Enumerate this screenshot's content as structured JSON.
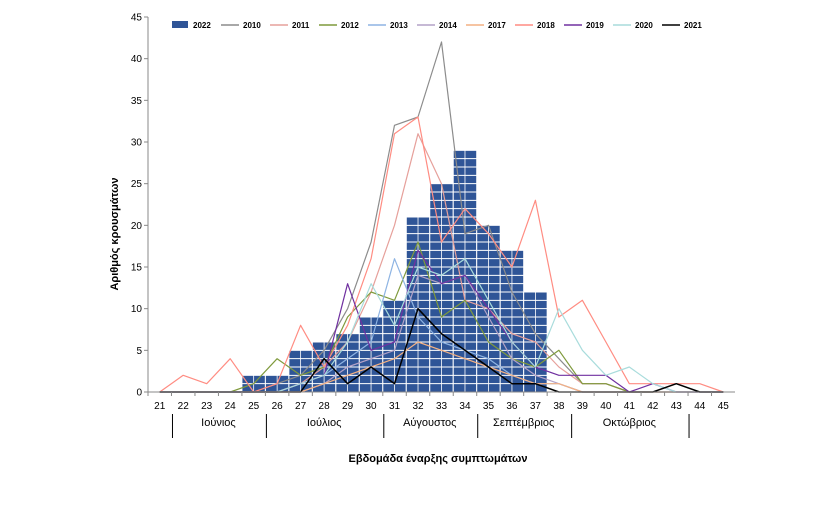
{
  "chart_data": {
    "type": "bar",
    "xlabel": "Εβδομάδα έναρξης συμπτωμάτων",
    "ylabel": "Αριθμός κρουσμάτων",
    "ylim": [
      0,
      45
    ],
    "yticks": [
      0,
      5,
      10,
      15,
      20,
      25,
      30,
      35,
      40,
      45
    ],
    "x": [
      21,
      22,
      23,
      24,
      25,
      26,
      27,
      28,
      29,
      30,
      31,
      32,
      33,
      34,
      35,
      36,
      37,
      38,
      39,
      40,
      41,
      42,
      43,
      44,
      45
    ],
    "months": [
      {
        "label": "Ιούνιος",
        "from": 22,
        "to": 26
      },
      {
        "label": "Ιούλιος",
        "from": 26,
        "to": 31
      },
      {
        "label": "Αύγουστος",
        "from": 31,
        "to": 35
      },
      {
        "label": "Σεπτέμβριος",
        "from": 35,
        "to": 39
      },
      {
        "label": "Οκτώβριος",
        "from": 39,
        "to": 44
      }
    ],
    "legend_position": "top",
    "bar_series": {
      "name": "2022",
      "color": "#2f5597",
      "values": [
        0,
        0,
        0,
        0,
        2,
        2,
        5,
        6,
        7,
        9,
        11,
        21,
        25,
        29,
        20,
        17,
        12,
        0,
        0,
        0,
        0,
        0,
        0,
        0,
        0
      ]
    },
    "line_series": [
      {
        "name": "2010",
        "color": "#8c8c8c",
        "values": [
          0,
          0,
          0,
          0,
          0,
          1,
          2,
          5,
          10,
          18,
          32,
          33,
          42,
          19,
          20,
          12,
          7,
          4,
          1,
          1,
          0,
          0,
          0,
          0,
          0
        ]
      },
      {
        "name": "2011",
        "color": "#e6a09b",
        "values": [
          0,
          0,
          0,
          0,
          0,
          0,
          1,
          3,
          6,
          12,
          20,
          31,
          25,
          11,
          10,
          7,
          6,
          3,
          1,
          1,
          0,
          0,
          0,
          0,
          0
        ]
      },
      {
        "name": "2012",
        "color": "#7f9a3c",
        "values": [
          0,
          0,
          0,
          0,
          1,
          4,
          2,
          3,
          9,
          12,
          11,
          18,
          9,
          11,
          6,
          4,
          3,
          5,
          1,
          1,
          0,
          0,
          0,
          0,
          0
        ]
      },
      {
        "name": "2013",
        "color": "#8eb4e3",
        "values": [
          0,
          0,
          0,
          0,
          0,
          0,
          1,
          2,
          4,
          6,
          16,
          9,
          6,
          5,
          4,
          2,
          1,
          1,
          0,
          0,
          0,
          0,
          0,
          0,
          0
        ]
      },
      {
        "name": "2014",
        "color": "#b3a2c7",
        "values": [
          0,
          0,
          0,
          0,
          0,
          0,
          0,
          1,
          3,
          4,
          5,
          14,
          13,
          14,
          9,
          4,
          2,
          1,
          0,
          0,
          0,
          0,
          0,
          0,
          0
        ]
      },
      {
        "name": "2017",
        "color": "#f4b183",
        "values": [
          0,
          0,
          0,
          0,
          0,
          0,
          0,
          1,
          2,
          3,
          4,
          6,
          5,
          4,
          3,
          2,
          1,
          1,
          0,
          0,
          0,
          0,
          0,
          0,
          0
        ]
      },
      {
        "name": "2018",
        "color": "#ff8c82",
        "values": [
          0,
          2,
          1,
          4,
          0,
          1,
          8,
          3,
          8,
          16,
          31,
          33,
          18,
          22,
          19,
          15,
          23,
          9,
          11,
          6,
          1,
          1,
          1,
          1,
          0
        ]
      },
      {
        "name": "2019",
        "color": "#7030a0",
        "values": [
          0,
          0,
          0,
          0,
          0,
          0,
          1,
          2,
          13,
          5,
          6,
          17,
          13,
          14,
          10,
          6,
          3,
          2,
          2,
          2,
          0,
          1,
          0,
          0,
          0
        ]
      },
      {
        "name": "2020",
        "color": "#a9dcdc",
        "values": [
          0,
          0,
          0,
          0,
          0,
          0,
          1,
          2,
          6,
          13,
          8,
          15,
          14,
          16,
          11,
          6,
          3,
          10,
          5,
          2,
          3,
          1,
          0,
          0,
          0
        ]
      },
      {
        "name": "2021",
        "color": "#000000",
        "values": [
          0,
          0,
          0,
          0,
          0,
          0,
          0,
          4,
          1,
          3,
          1,
          10,
          7,
          5,
          3,
          1,
          1,
          0,
          0,
          0,
          0,
          0,
          1,
          0,
          0
        ]
      }
    ]
  }
}
